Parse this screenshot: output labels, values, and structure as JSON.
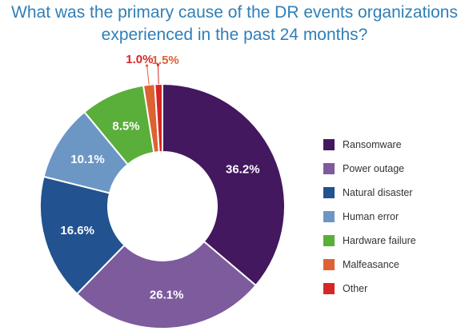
{
  "title": {
    "line1": "What was the primary cause of the DR events organizations",
    "line2": "experienced in the past 24 months?"
  },
  "chart_data": {
    "type": "pie",
    "donut": true,
    "legend_position": "right",
    "slices": [
      {
        "name": "Ransomware",
        "value": 36.2,
        "label": "36.2%",
        "color": "#43185f"
      },
      {
        "name": "Power outage",
        "value": 26.1,
        "label": "26.1%",
        "color": "#7d5b9d"
      },
      {
        "name": "Natural disaster",
        "value": 16.6,
        "label": "16.6%",
        "color": "#22528f"
      },
      {
        "name": "Human error",
        "value": 10.1,
        "label": "10.1%",
        "color": "#6c97c5"
      },
      {
        "name": "Hardware failure",
        "value": 8.5,
        "label": "8.5%",
        "color": "#5aae3a"
      },
      {
        "name": "Malfeasance",
        "value": 1.5,
        "label": "1.5%",
        "color": "#dd6232"
      },
      {
        "name": "Other",
        "value": 1.0,
        "label": "1.0%",
        "color": "#d62627"
      }
    ]
  }
}
